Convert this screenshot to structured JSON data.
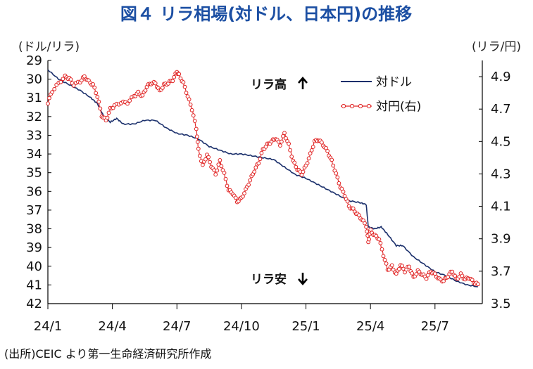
{
  "chart_data": {
    "type": "line",
    "title": "図４ リラ相場(対ドル、日本円)の推移",
    "left_unit": "(ドル/リラ)",
    "right_unit": "(リラ/円)",
    "annotation_high": "リラ高",
    "annotation_low": "リラ安",
    "source": "(出所)CEIC より第一生命経済研究所作成",
    "x_ticks": [
      "24/1",
      "24/4",
      "24/7",
      "24/10",
      "25/1",
      "25/4",
      "25/7"
    ],
    "x_tick_months": [
      0,
      3,
      6,
      9,
      12,
      15,
      18
    ],
    "x_range_months": [
      0,
      20.2
    ],
    "left_axis": {
      "min": 29,
      "max": 42,
      "inverted": true,
      "ticks": [
        29,
        30,
        31,
        32,
        33,
        34,
        35,
        36,
        37,
        38,
        39,
        40,
        41,
        42
      ]
    },
    "right_axis": {
      "min": 3.5,
      "max": 5.0,
      "ticks": [
        4.9,
        4.7,
        4.5,
        4.3,
        4.1,
        3.9,
        3.7,
        3.5
      ]
    },
    "grid": false,
    "legend_position": "top-right",
    "series": [
      {
        "name": "対ドル",
        "axis": "left",
        "color": "#1a2f6b",
        "marker": "none",
        "points": [
          [
            0.0,
            29.5
          ],
          [
            0.5,
            30.0
          ],
          [
            1.0,
            30.3
          ],
          [
            1.5,
            30.6
          ],
          [
            2.0,
            31.0
          ],
          [
            2.3,
            31.3
          ],
          [
            2.6,
            32.0
          ],
          [
            2.9,
            32.3
          ],
          [
            3.2,
            32.1
          ],
          [
            3.5,
            32.4
          ],
          [
            4.0,
            32.4
          ],
          [
            4.5,
            32.2
          ],
          [
            5.0,
            32.2
          ],
          [
            5.5,
            32.6
          ],
          [
            6.0,
            32.9
          ],
          [
            6.5,
            33.0
          ],
          [
            7.0,
            33.2
          ],
          [
            7.5,
            33.6
          ],
          [
            8.0,
            33.8
          ],
          [
            8.5,
            34.0
          ],
          [
            9.0,
            34.0
          ],
          [
            9.5,
            34.1
          ],
          [
            10.0,
            34.2
          ],
          [
            10.5,
            34.3
          ],
          [
            11.0,
            34.7
          ],
          [
            11.5,
            35.1
          ],
          [
            12.0,
            35.3
          ],
          [
            12.5,
            35.6
          ],
          [
            13.0,
            35.9
          ],
          [
            13.5,
            36.2
          ],
          [
            14.0,
            36.5
          ],
          [
            14.5,
            36.6
          ],
          [
            14.8,
            36.7
          ],
          [
            14.9,
            37.9
          ],
          [
            15.2,
            38.0
          ],
          [
            15.5,
            37.9
          ],
          [
            15.8,
            38.3
          ],
          [
            16.2,
            38.9
          ],
          [
            16.5,
            38.9
          ],
          [
            17.0,
            39.5
          ],
          [
            17.5,
            39.9
          ],
          [
            18.0,
            40.3
          ],
          [
            18.5,
            40.5
          ],
          [
            19.0,
            40.8
          ],
          [
            19.5,
            41.0
          ],
          [
            20.0,
            41.1
          ]
        ]
      },
      {
        "name": "対円(右)",
        "axis": "right",
        "color": "#e02020",
        "marker": "circle",
        "points": [
          [
            0.0,
            4.74
          ],
          [
            0.2,
            4.81
          ],
          [
            0.5,
            4.86
          ],
          [
            0.8,
            4.9
          ],
          [
            1.0,
            4.89
          ],
          [
            1.2,
            4.85
          ],
          [
            1.5,
            4.87
          ],
          [
            1.7,
            4.9
          ],
          [
            1.9,
            4.87
          ],
          [
            2.1,
            4.85
          ],
          [
            2.3,
            4.78
          ],
          [
            2.5,
            4.66
          ],
          [
            2.7,
            4.63
          ],
          [
            2.9,
            4.7
          ],
          [
            3.1,
            4.72
          ],
          [
            3.4,
            4.74
          ],
          [
            3.7,
            4.74
          ],
          [
            4.0,
            4.78
          ],
          [
            4.2,
            4.8
          ],
          [
            4.4,
            4.78
          ],
          [
            4.6,
            4.84
          ],
          [
            4.8,
            4.86
          ],
          [
            5.0,
            4.86
          ],
          [
            5.2,
            4.81
          ],
          [
            5.4,
            4.85
          ],
          [
            5.6,
            4.86
          ],
          [
            5.8,
            4.88
          ],
          [
            6.0,
            4.93
          ],
          [
            6.1,
            4.91
          ],
          [
            6.3,
            4.86
          ],
          [
            6.5,
            4.78
          ],
          [
            6.7,
            4.7
          ],
          [
            6.9,
            4.58
          ],
          [
            7.0,
            4.45
          ],
          [
            7.2,
            4.35
          ],
          [
            7.4,
            4.42
          ],
          [
            7.6,
            4.35
          ],
          [
            7.8,
            4.3
          ],
          [
            8.0,
            4.38
          ],
          [
            8.2,
            4.3
          ],
          [
            8.4,
            4.2
          ],
          [
            8.6,
            4.18
          ],
          [
            8.8,
            4.13
          ],
          [
            9.0,
            4.15
          ],
          [
            9.2,
            4.2
          ],
          [
            9.4,
            4.26
          ],
          [
            9.6,
            4.32
          ],
          [
            9.8,
            4.37
          ],
          [
            10.0,
            4.45
          ],
          [
            10.2,
            4.48
          ],
          [
            10.4,
            4.5
          ],
          [
            10.6,
            4.52
          ],
          [
            10.8,
            4.48
          ],
          [
            11.0,
            4.55
          ],
          [
            11.2,
            4.48
          ],
          [
            11.4,
            4.38
          ],
          [
            11.6,
            4.33
          ],
          [
            11.8,
            4.3
          ],
          [
            12.0,
            4.35
          ],
          [
            12.2,
            4.42
          ],
          [
            12.4,
            4.5
          ],
          [
            12.6,
            4.51
          ],
          [
            12.8,
            4.48
          ],
          [
            13.0,
            4.44
          ],
          [
            13.2,
            4.38
          ],
          [
            13.4,
            4.3
          ],
          [
            13.6,
            4.22
          ],
          [
            13.8,
            4.17
          ],
          [
            14.0,
            4.1
          ],
          [
            14.2,
            4.08
          ],
          [
            14.4,
            4.05
          ],
          [
            14.6,
            4.02
          ],
          [
            14.8,
            3.98
          ],
          [
            14.9,
            3.88
          ],
          [
            15.0,
            3.95
          ],
          [
            15.2,
            3.92
          ],
          [
            15.4,
            3.9
          ],
          [
            15.6,
            3.8
          ],
          [
            15.8,
            3.71
          ],
          [
            16.0,
            3.73
          ],
          [
            16.2,
            3.68
          ],
          [
            16.4,
            3.74
          ],
          [
            16.6,
            3.7
          ],
          [
            16.8,
            3.73
          ],
          [
            17.0,
            3.66
          ],
          [
            17.2,
            3.7
          ],
          [
            17.4,
            3.68
          ],
          [
            17.6,
            3.66
          ],
          [
            17.8,
            3.7
          ],
          [
            18.0,
            3.68
          ],
          [
            18.2,
            3.65
          ],
          [
            18.4,
            3.64
          ],
          [
            18.6,
            3.67
          ],
          [
            18.8,
            3.7
          ],
          [
            19.0,
            3.65
          ],
          [
            19.2,
            3.68
          ],
          [
            19.4,
            3.65
          ],
          [
            19.6,
            3.66
          ],
          [
            19.8,
            3.63
          ],
          [
            20.0,
            3.62
          ]
        ]
      }
    ]
  }
}
